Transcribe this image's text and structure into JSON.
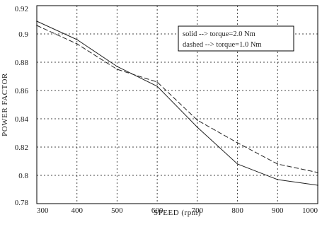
{
  "chart_data": {
    "type": "line",
    "title": "",
    "xlabel": "SPEED (rpm)",
    "ylabel": "POWER FACTOR",
    "xlim": [
      300,
      1000
    ],
    "ylim": [
      0.78,
      0.92
    ],
    "x_tick_labels": [
      "300",
      "400",
      "500",
      "600",
      "700",
      "800",
      "900",
      "1000"
    ],
    "y_tick_labels": [
      "0.92",
      "0.9",
      "0.88",
      "0.86",
      "0.84",
      "0.82",
      "0.8",
      "0.78"
    ],
    "grid": true,
    "grid_style": "dotted",
    "legend_position": "top-right",
    "legend": [
      "solid --> torque=2.0 Nm",
      "dashed --> torque=1.0 Nm"
    ],
    "x": [
      300,
      400,
      500,
      600,
      700,
      800,
      900,
      1000
    ],
    "series": [
      {
        "name": "torque=2.0 Nm",
        "style": "solid",
        "values": [
          0.909,
          0.896,
          0.877,
          0.863,
          0.834,
          0.808,
          0.797,
          0.793
        ]
      },
      {
        "name": "torque=1.0 Nm",
        "style": "dashed",
        "values": [
          0.906,
          0.893,
          0.875,
          0.866,
          0.839,
          0.823,
          0.808,
          0.802
        ]
      }
    ],
    "colors": {
      "lines": "#222222",
      "grid": "#444444",
      "axes": "#000000"
    }
  }
}
